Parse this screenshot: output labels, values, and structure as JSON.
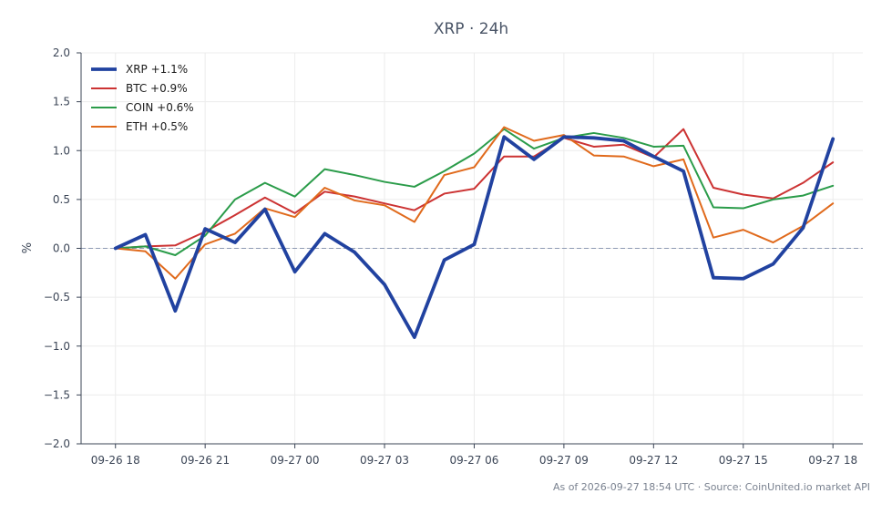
{
  "chart_data": {
    "type": "line",
    "title": "XRP · 24h",
    "ylabel": "%",
    "xlabel": "",
    "ylim": [
      -2.0,
      2.0
    ],
    "yticks": [
      2.0,
      1.5,
      1.0,
      0.5,
      0.0,
      -0.5,
      -1.0,
      -1.5,
      -2.0
    ],
    "ytick_labels": [
      "2.0",
      "1.5",
      "1.0",
      "0.5",
      "0.0",
      "−0.5",
      "−1.0",
      "−1.5",
      "−2.0"
    ],
    "xlim": [
      -1.15,
      25.0
    ],
    "xticks": [
      0,
      3,
      6,
      9,
      12,
      15,
      18,
      21,
      24
    ],
    "xtick_labels": [
      "09-26 18",
      "09-26 21",
      "09-27 00",
      "09-27 03",
      "09-27 06",
      "09-27 09",
      "09-27 12",
      "09-27 15",
      "09-27 18"
    ],
    "x": [
      0,
      1,
      2,
      3,
      4,
      5,
      6,
      7,
      8,
      9,
      10,
      11,
      12,
      13,
      14,
      15,
      16,
      17,
      18,
      19,
      20,
      21,
      22,
      23,
      24
    ],
    "x_unit": "hours from 09-26 18",
    "grid": true,
    "zero_line": true,
    "legend_position": "top-left",
    "series": [
      {
        "name": "XRP +1.1%",
        "color": "#2142a0",
        "width": 3.8,
        "values": [
          0.0,
          0.14,
          -0.64,
          0.2,
          0.06,
          0.4,
          -0.24,
          0.15,
          -0.04,
          -0.37,
          -0.91,
          -0.12,
          0.04,
          1.14,
          0.91,
          1.14,
          1.13,
          1.1,
          0.94,
          0.79,
          -0.3,
          -0.31,
          -0.16,
          0.21,
          1.12
        ]
      },
      {
        "name": "BTC +0.9%",
        "color": "#cc3333",
        "width": 2,
        "values": [
          0.0,
          0.02,
          0.03,
          0.17,
          0.34,
          0.52,
          0.36,
          0.58,
          0.53,
          0.46,
          0.39,
          0.56,
          0.61,
          0.94,
          0.94,
          1.13,
          1.04,
          1.06,
          0.93,
          1.22,
          0.62,
          0.55,
          0.51,
          0.67,
          0.88
        ]
      },
      {
        "name": "COIN +0.6%",
        "color": "#2b9c4a",
        "width": 2,
        "values": [
          0.0,
          0.02,
          -0.07,
          0.13,
          0.5,
          0.67,
          0.53,
          0.81,
          0.75,
          0.68,
          0.63,
          0.79,
          0.97,
          1.22,
          1.02,
          1.13,
          1.18,
          1.13,
          1.04,
          1.05,
          0.42,
          0.41,
          0.5,
          0.54,
          0.64
        ]
      },
      {
        "name": "ETH +0.5%",
        "color": "#e06a1c",
        "width": 2,
        "values": [
          0.0,
          -0.03,
          -0.31,
          0.04,
          0.15,
          0.41,
          0.32,
          0.62,
          0.49,
          0.44,
          0.27,
          0.75,
          0.83,
          1.24,
          1.1,
          1.16,
          0.95,
          0.94,
          0.84,
          0.91,
          0.11,
          0.19,
          0.06,
          0.23,
          0.46
        ]
      }
    ]
  },
  "footer": "As of 2026-09-27 18:54 UTC · Source: CoinUnited.io market API"
}
